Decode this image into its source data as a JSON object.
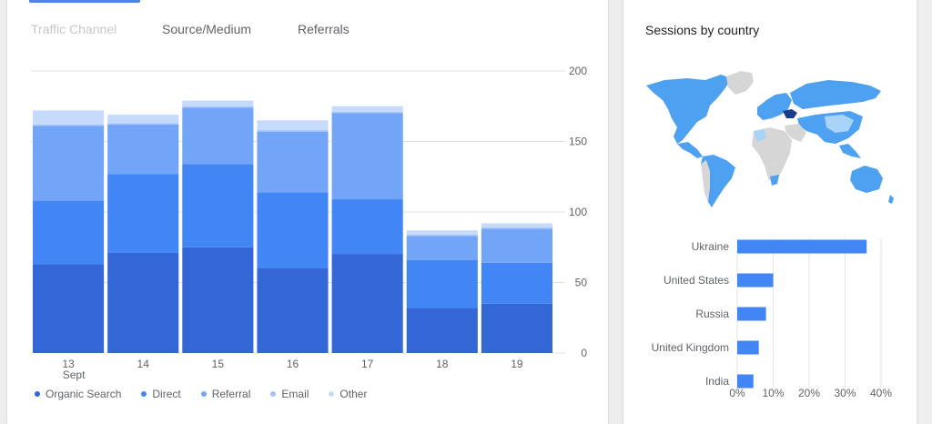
{
  "tabs": [
    {
      "label": "Traffic Channel",
      "active": true
    },
    {
      "label": "Source/Medium",
      "active": false
    },
    {
      "label": "Referrals",
      "active": false
    }
  ],
  "chart_data": [
    {
      "type": "bar",
      "stacked": true,
      "categories": [
        "13",
        "14",
        "15",
        "16",
        "17",
        "18",
        "19"
      ],
      "category_sublabel": {
        "13": "Sept"
      },
      "series": [
        {
          "name": "Organic Search",
          "color": "#3367d6",
          "values": [
            63,
            71,
            75,
            60,
            70,
            32,
            35
          ]
        },
        {
          "name": "Direct",
          "color": "#4285f4",
          "values": [
            45,
            56,
            59,
            54,
            39,
            34,
            29
          ]
        },
        {
          "name": "Referral",
          "color": "#72a4f7",
          "values": [
            53,
            35,
            40,
            43,
            61,
            17,
            24
          ]
        },
        {
          "name": "Email",
          "color": "#a1c2fa",
          "values": [
            1,
            1,
            1,
            1,
            1,
            1,
            1
          ]
        },
        {
          "name": "Other",
          "color": "#c6dafc",
          "values": [
            10,
            6,
            4,
            7,
            4,
            3,
            3
          ]
        }
      ],
      "ylim": [
        0,
        200
      ],
      "yticks": [
        0,
        50,
        100,
        150,
        200
      ],
      "grid": true,
      "y_axis_side": "right",
      "legend_position": "bottom"
    },
    {
      "type": "bar",
      "orientation": "horizontal",
      "title": "Sessions by country",
      "categories": [
        "Ukraine",
        "United States",
        "Russia",
        "United Kingdom",
        "India"
      ],
      "values": [
        36,
        10,
        8,
        6,
        4.5
      ],
      "unit": "%",
      "color": "#4285f4",
      "xlim": [
        0,
        40
      ],
      "xticks": [
        "0%",
        "10%",
        "20%",
        "30%",
        "40%"
      ],
      "grid": true
    }
  ],
  "map": {
    "title": "Sessions by country",
    "colors": {
      "high": "#1a3c8a",
      "medium": "#4ea1f1",
      "low": "#a9d3f7",
      "none": "#d6d6d6"
    }
  }
}
